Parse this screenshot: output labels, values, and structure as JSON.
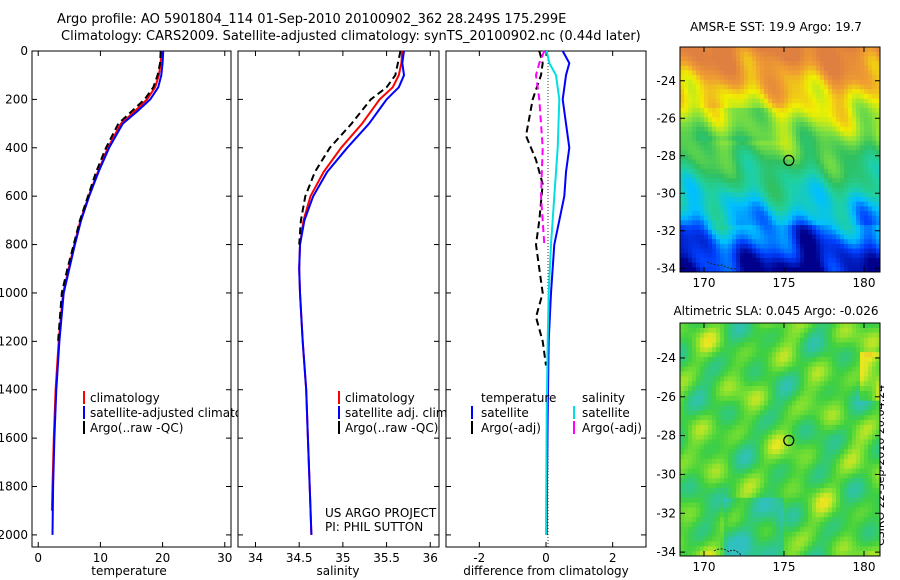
{
  "header": {
    "title_line1": "Argo profile: AO 5901804_114 01-Sep-2010 20100902_362 28.249S 175.299E",
    "title_line2": "Climatology: CARS2009. Satellite-adjusted climatology: synTS_20100902.nc (0.44d later)"
  },
  "credit": "CSIRO 22-Sep-2010 20:04:24",
  "colors": {
    "climatology": "#ff0000",
    "satellite": "#0000ff",
    "argo": "#000000",
    "satellite_salinity": "#00e0e0",
    "argo_salinity": "#ff00ff"
  },
  "chart_data": [
    {
      "type": "line",
      "panel": "temperature",
      "xlabel": "temperature",
      "ylabel": "",
      "xlim": [
        -1,
        31
      ],
      "ylim": [
        2050,
        0
      ],
      "y_reversed": true,
      "xticks": [
        0,
        10,
        20,
        30
      ],
      "yticks": [
        0,
        200,
        400,
        600,
        800,
        1000,
        1200,
        1400,
        1600,
        1800,
        2000
      ],
      "legend": [
        "climatology",
        "satellite-adjusted climatology",
        "Argo(..raw -QC)"
      ],
      "series": [
        {
          "name": "climatology",
          "color": "#ff0000",
          "style": "solid",
          "x": [
            19.8,
            19.7,
            19.4,
            18.8,
            17.5,
            15.5,
            13.3,
            11.2,
            9.6,
            8.1,
            6.8,
            5.8,
            4.9,
            4.0,
            3.3,
            2.8,
            2.5,
            2.3,
            2.2
          ],
          "y": [
            0,
            50,
            100,
            150,
            200,
            250,
            300,
            400,
            500,
            600,
            700,
            800,
            900,
            1000,
            1200,
            1400,
            1600,
            1800,
            1900
          ]
        },
        {
          "name": "satellite-adjusted climatology",
          "color": "#0000ff",
          "style": "solid",
          "x": [
            20.1,
            20.0,
            19.8,
            19.3,
            18.0,
            15.9,
            13.6,
            11.4,
            9.7,
            8.2,
            6.9,
            5.9,
            5.0,
            4.1,
            3.4,
            2.9,
            2.6,
            2.4,
            2.3
          ],
          "y": [
            0,
            50,
            100,
            150,
            200,
            250,
            300,
            400,
            500,
            600,
            700,
            800,
            900,
            1000,
            1200,
            1400,
            1600,
            1800,
            2000
          ]
        },
        {
          "name": "Argo(..raw -QC)",
          "color": "#000000",
          "style": "dashed",
          "x": [
            19.7,
            19.6,
            19.2,
            18.5,
            17.1,
            15.0,
            12.9,
            10.9,
            9.3,
            8.0,
            6.7,
            5.7,
            4.7,
            3.8,
            3.2
          ],
          "y": [
            0,
            50,
            100,
            150,
            200,
            250,
            300,
            400,
            500,
            600,
            700,
            800,
            900,
            1000,
            1200
          ]
        }
      ]
    },
    {
      "type": "line",
      "panel": "salinity",
      "xlabel": "salinity",
      "xlim": [
        33.8,
        36.1
      ],
      "ylim": [
        2050,
        0
      ],
      "y_reversed": true,
      "xticks": [
        34,
        34.5,
        35,
        35.5,
        36
      ],
      "legend": [
        "climatology",
        "satellite adj. clim.",
        "Argo(..raw -QC)"
      ],
      "annotations": [
        "US ARGO PROJECT",
        "PI: PHIL SUTTON"
      ],
      "series": [
        {
          "name": "climatology",
          "color": "#ff0000",
          "style": "solid",
          "x": [
            35.68,
            35.67,
            35.64,
            35.57,
            35.42,
            35.22,
            34.98,
            34.78,
            34.63,
            34.55,
            34.51,
            34.5,
            34.51,
            34.54,
            34.58,
            34.6,
            34.62,
            34.64
          ],
          "y": [
            0,
            50,
            100,
            150,
            200,
            300,
            400,
            500,
            600,
            700,
            800,
            900,
            1000,
            1200,
            1400,
            1600,
            1800,
            2000
          ]
        },
        {
          "name": "satellite adj. clim.",
          "color": "#0000ff",
          "style": "solid",
          "x": [
            35.7,
            35.68,
            35.7,
            35.64,
            35.5,
            35.3,
            35.05,
            34.82,
            34.66,
            34.56,
            34.51,
            34.5,
            34.51,
            34.54,
            34.58,
            34.6,
            34.62,
            34.64
          ],
          "y": [
            0,
            50,
            100,
            150,
            200,
            300,
            400,
            500,
            600,
            700,
            800,
            900,
            1000,
            1200,
            1400,
            1600,
            1800,
            2000
          ]
        },
        {
          "name": "Argo(..raw -QC)",
          "color": "#000000",
          "style": "dashed",
          "x": [
            35.66,
            35.63,
            35.6,
            35.5,
            35.32,
            35.1,
            34.85,
            34.68,
            34.57,
            34.52,
            34.5
          ],
          "y": [
            0,
            50,
            100,
            150,
            200,
            300,
            400,
            500,
            600,
            700,
            800
          ]
        }
      ]
    },
    {
      "type": "line",
      "panel": "difference",
      "xlabel": "difference from climatology",
      "xlim": [
        -3,
        3
      ],
      "ylim": [
        2050,
        0
      ],
      "y_reversed": true,
      "xticks": [
        -2,
        0,
        2
      ],
      "legend_titles": [
        "temperature",
        "salinity"
      ],
      "legend": [
        "satellite",
        "Argo(-adj)",
        "satellite",
        "Argo(-adj)"
      ],
      "series": [
        {
          "name": "satellite",
          "quantity": "temperature",
          "color": "#0000ff",
          "style": "solid",
          "x": [
            0.5,
            0.7,
            0.6,
            0.5,
            0.6,
            0.7,
            0.6,
            0.55,
            0.4,
            0.25,
            0.15,
            0.08,
            0.05,
            0.03,
            0.02
          ],
          "y": [
            0,
            50,
            100,
            200,
            300,
            400,
            500,
            600,
            700,
            800,
            1000,
            1200,
            1500,
            1800,
            2000
          ]
        },
        {
          "name": "Argo(-adj)",
          "quantity": "temperature",
          "color": "#000000",
          "style": "dashed",
          "x": [
            -0.2,
            -0.1,
            -0.15,
            -0.4,
            -0.6,
            -0.3,
            -0.1,
            -0.2,
            -0.3,
            -0.2,
            -0.1,
            -0.3,
            -0.1,
            0
          ],
          "y": [
            0,
            50,
            100,
            200,
            350,
            450,
            550,
            700,
            800,
            900,
            1000,
            1100,
            1200,
            1300
          ]
        },
        {
          "name": "satellite",
          "quantity": "salinity",
          "color": "#00e0e0",
          "style": "solid",
          "x": [
            0.02,
            0.1,
            0.3,
            0.4,
            0.35,
            0.25,
            0.15,
            0.08,
            0.05,
            0.02,
            0
          ],
          "y": [
            0,
            50,
            100,
            200,
            400,
            600,
            800,
            1000,
            1200,
            1500,
            2000
          ]
        },
        {
          "name": "Argo(-adj)",
          "quantity": "salinity",
          "color": "#ff00ff",
          "style": "dashed",
          "x": [
            -0.05,
            -0.2,
            -0.3,
            -0.2,
            -0.1,
            -0.15,
            -0.05
          ],
          "y": [
            0,
            50,
            100,
            200,
            400,
            600,
            800
          ]
        }
      ]
    },
    {
      "type": "heatmap",
      "panel": "sst_map",
      "title": "AMSR-E SST: 19.9 Argo: 19.7",
      "xlim": [
        168.5,
        181
      ],
      "ylim": [
        -34.2,
        -22.2
      ],
      "xticks": [
        170,
        175,
        180
      ],
      "yticks": [
        -24,
        -26,
        -28,
        -30,
        -32,
        -34
      ],
      "marker": {
        "lon": 175.299,
        "lat": -28.249
      },
      "colormap": [
        "#00008c",
        "#0040ff",
        "#00c0ff",
        "#20d0a0",
        "#30c060",
        "#80e040",
        "#f0f000",
        "#f0a030",
        "#e08040"
      ]
    },
    {
      "type": "heatmap",
      "panel": "sla_map",
      "title": "Altimetric SLA: 0.045 Argo: -0.026",
      "xlim": [
        168.5,
        181
      ],
      "ylim": [
        -34.2,
        -22.2
      ],
      "xticks": [
        170,
        175,
        180
      ],
      "yticks": [
        -24,
        -26,
        -28,
        -30,
        -32,
        -34
      ],
      "marker": {
        "lon": 175.299,
        "lat": -28.249
      }
    }
  ]
}
